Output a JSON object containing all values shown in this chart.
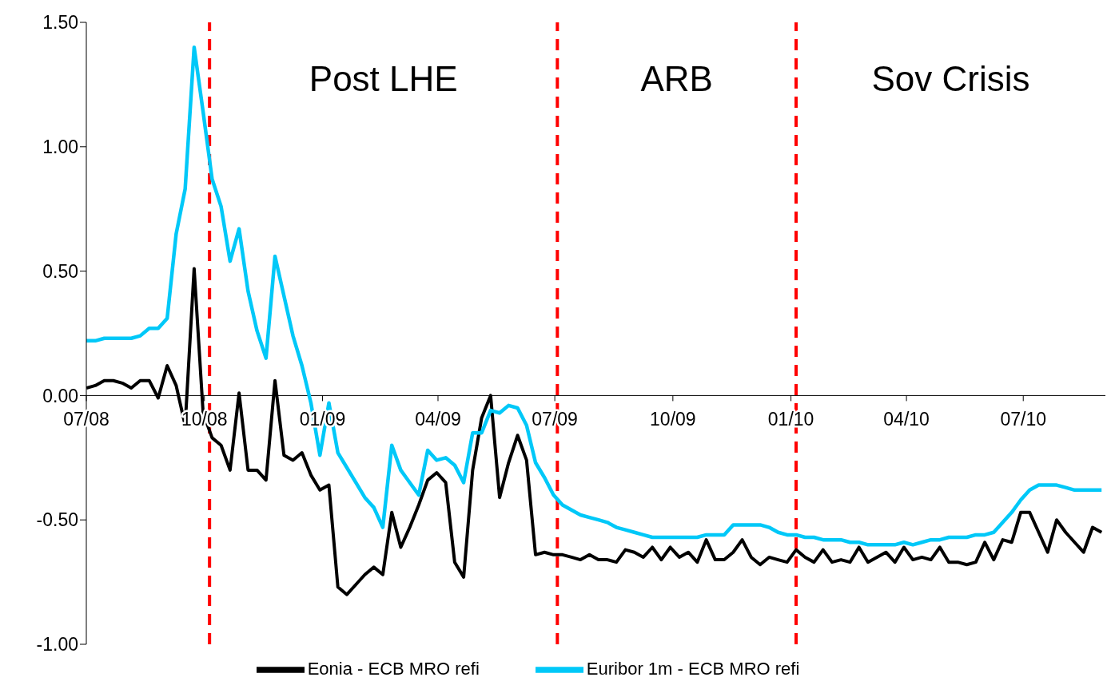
{
  "chart_data": {
    "type": "line",
    "x": [
      "2008-07-01",
      "2008-07-08",
      "2008-07-15",
      "2008-07-22",
      "2008-07-29",
      "2008-08-05",
      "2008-08-12",
      "2008-08-19",
      "2008-08-26",
      "2008-09-02",
      "2008-09-09",
      "2008-09-16",
      "2008-09-23",
      "2008-09-30",
      "2008-10-07",
      "2008-10-14",
      "2008-10-21",
      "2008-10-28",
      "2008-11-04",
      "2008-11-11",
      "2008-11-18",
      "2008-11-25",
      "2008-12-02",
      "2008-12-09",
      "2008-12-16",
      "2008-12-23",
      "2008-12-30",
      "2009-01-06",
      "2009-01-13",
      "2009-01-20",
      "2009-01-27",
      "2009-02-03",
      "2009-02-10",
      "2009-02-17",
      "2009-02-24",
      "2009-03-03",
      "2009-03-10",
      "2009-03-17",
      "2009-03-24",
      "2009-03-31",
      "2009-04-07",
      "2009-04-14",
      "2009-04-21",
      "2009-04-28",
      "2009-05-05",
      "2009-05-12",
      "2009-05-19",
      "2009-05-26",
      "2009-06-02",
      "2009-06-09",
      "2009-06-16",
      "2009-06-23",
      "2009-06-30",
      "2009-07-07",
      "2009-07-14",
      "2009-07-21",
      "2009-07-28",
      "2009-08-04",
      "2009-08-11",
      "2009-08-18",
      "2009-08-25",
      "2009-09-01",
      "2009-09-08",
      "2009-09-15",
      "2009-09-22",
      "2009-09-29",
      "2009-10-06",
      "2009-10-13",
      "2009-10-20",
      "2009-10-27",
      "2009-11-03",
      "2009-11-10",
      "2009-11-17",
      "2009-11-24",
      "2009-12-01",
      "2009-12-08",
      "2009-12-15",
      "2009-12-22",
      "2009-12-29",
      "2010-01-05",
      "2010-01-12",
      "2010-01-19",
      "2010-01-26",
      "2010-02-02",
      "2010-02-09",
      "2010-02-16",
      "2010-02-23",
      "2010-03-02",
      "2010-03-09",
      "2010-03-16",
      "2010-03-23",
      "2010-03-30",
      "2010-04-06",
      "2010-04-13",
      "2010-04-20",
      "2010-04-27",
      "2010-05-04",
      "2010-05-11",
      "2010-05-18",
      "2010-05-25",
      "2010-06-01",
      "2010-06-08",
      "2010-06-15",
      "2010-06-22",
      "2010-06-29",
      "2010-07-06",
      "2010-07-13",
      "2010-07-20",
      "2010-07-27",
      "2010-08-03",
      "2010-08-10",
      "2010-08-17",
      "2010-08-24",
      "2010-08-31"
    ],
    "series": [
      {
        "name": "Eonia - ECB MRO refi",
        "color": "#000000",
        "values": [
          0.03,
          0.04,
          0.06,
          0.06,
          0.05,
          0.03,
          0.06,
          0.06,
          -0.01,
          0.12,
          0.04,
          -0.12,
          0.51,
          -0.07,
          -0.17,
          -0.2,
          -0.3,
          0.01,
          -0.3,
          -0.3,
          -0.34,
          0.06,
          -0.24,
          -0.26,
          -0.23,
          -0.32,
          -0.38,
          -0.36,
          -0.77,
          -0.8,
          -0.76,
          -0.72,
          -0.69,
          -0.72,
          -0.47,
          -0.61,
          -0.53,
          -0.44,
          -0.34,
          -0.31,
          -0.35,
          -0.67,
          -0.73,
          -0.3,
          -0.09,
          0.0,
          -0.41,
          -0.27,
          -0.16,
          -0.26,
          -0.64,
          -0.63,
          -0.64,
          -0.64,
          -0.65,
          -0.66,
          -0.64,
          -0.66,
          -0.66,
          -0.67,
          -0.62,
          -0.63,
          -0.65,
          -0.61,
          -0.66,
          -0.61,
          -0.65,
          -0.63,
          -0.67,
          -0.58,
          -0.66,
          -0.66,
          -0.63,
          -0.58,
          -0.65,
          -0.68,
          -0.65,
          -0.66,
          -0.67,
          -0.62,
          -0.65,
          -0.67,
          -0.62,
          -0.67,
          -0.66,
          -0.67,
          -0.61,
          -0.67,
          -0.65,
          -0.63,
          -0.67,
          -0.61,
          -0.66,
          -0.65,
          -0.66,
          -0.61,
          -0.67,
          -0.67,
          -0.68,
          -0.67,
          -0.59,
          -0.66,
          -0.58,
          -0.59,
          -0.47,
          -0.47,
          -0.55,
          -0.63,
          -0.5,
          -0.55,
          -0.59,
          -0.63,
          -0.53,
          -0.55
        ]
      },
      {
        "name": "Euribor 1m - ECB MRO refi",
        "color": "#00c8f8",
        "values": [
          0.22,
          0.22,
          0.23,
          0.23,
          0.23,
          0.23,
          0.24,
          0.27,
          0.27,
          0.31,
          0.65,
          0.83,
          1.4,
          1.14,
          0.87,
          0.76,
          0.54,
          0.67,
          0.42,
          0.26,
          0.15,
          0.56,
          0.4,
          0.24,
          0.12,
          -0.03,
          -0.24,
          -0.03,
          -0.23,
          -0.29,
          -0.35,
          -0.41,
          -0.45,
          -0.53,
          -0.2,
          -0.3,
          -0.35,
          -0.4,
          -0.22,
          -0.26,
          -0.25,
          -0.28,
          -0.35,
          -0.15,
          -0.15,
          -0.06,
          -0.07,
          -0.04,
          -0.05,
          -0.12,
          -0.27,
          -0.33,
          -0.4,
          -0.44,
          -0.46,
          -0.48,
          -0.49,
          -0.5,
          -0.51,
          -0.53,
          -0.54,
          -0.55,
          -0.56,
          -0.57,
          -0.57,
          -0.57,
          -0.57,
          -0.57,
          -0.57,
          -0.56,
          -0.56,
          -0.56,
          -0.52,
          -0.52,
          -0.52,
          -0.52,
          -0.53,
          -0.55,
          -0.56,
          -0.56,
          -0.57,
          -0.57,
          -0.58,
          -0.58,
          -0.58,
          -0.59,
          -0.59,
          -0.6,
          -0.6,
          -0.6,
          -0.6,
          -0.59,
          -0.6,
          -0.59,
          -0.58,
          -0.58,
          -0.57,
          -0.57,
          -0.57,
          -0.56,
          -0.56,
          -0.55,
          -0.51,
          -0.47,
          -0.42,
          -0.38,
          -0.36,
          -0.36,
          -0.36,
          -0.37,
          -0.38,
          -0.38,
          -0.38,
          -0.38
        ]
      }
    ],
    "xlim": [
      "2008-07-01",
      "2010-09-03"
    ],
    "xticks": [
      {
        "value": "2008-07-01",
        "label": "07/08"
      },
      {
        "value": "2008-10-01",
        "label": "10/08"
      },
      {
        "value": "2009-01-01",
        "label": "01/09"
      },
      {
        "value": "2009-04-01",
        "label": "04/09"
      },
      {
        "value": "2009-07-01",
        "label": "07/09"
      },
      {
        "value": "2009-10-01",
        "label": "10/09"
      },
      {
        "value": "2010-01-01",
        "label": "01/10"
      },
      {
        "value": "2010-04-01",
        "label": "04/10"
      },
      {
        "value": "2010-07-01",
        "label": "07/10"
      }
    ],
    "ylim": [
      -1,
      1.5
    ],
    "yticks": [
      {
        "value": -1,
        "label": "-1.00"
      },
      {
        "value": -0.5,
        "label": "-0.50"
      },
      {
        "value": 0,
        "label": "0.00"
      },
      {
        "value": 0.5,
        "label": "0.50"
      },
      {
        "value": 1,
        "label": "1.00"
      },
      {
        "value": 1.5,
        "label": "1.50"
      }
    ],
    "ref_lines": [
      {
        "axis": "x",
        "value": "2008-10-05",
        "color": "#ff0000",
        "line_style": "dashed"
      },
      {
        "axis": "x",
        "value": "2009-07-03",
        "color": "#ff0000",
        "line_style": "dashed"
      },
      {
        "axis": "x",
        "value": "2010-01-05",
        "color": "#ff0000",
        "line_style": "dashed"
      }
    ],
    "annotations": [
      "Post LHE",
      "ARB",
      "Sov Crisis"
    ],
    "legend": "bottom"
  }
}
